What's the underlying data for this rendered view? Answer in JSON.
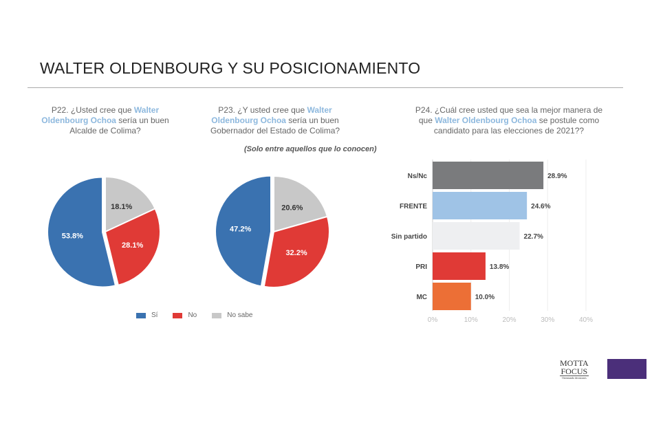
{
  "title": "WALTER OLDENBOURG Y SU POSICIONAMIENTO",
  "q22": {
    "pre": "P22. ¿Usted cree que ",
    "name1": "Walter",
    "name2": "Oldenbourg Ochoa",
    "post1": " sería un buen",
    "post2": "Alcalde de Colima?"
  },
  "q23": {
    "pre": "P23. ¿Y usted cree que ",
    "name1": "Walter",
    "name2": "Oldenbourg Ochoa",
    "post1": " sería un buen",
    "post2": "Gobernador del Estado de Colima?"
  },
  "q24": {
    "line1": "P24. ¿Cuál cree usted que sea la mejor manera de",
    "pre": "que ",
    "name": "Walter Oldenbourg Ochoa",
    "post": " se postule como",
    "line3": "candidato para las elecciones de 2021??"
  },
  "note": "(Solo entre aquellos que lo conocen)",
  "legend": [
    {
      "label": "Sí",
      "color": "#3a72b0"
    },
    {
      "label": "No",
      "color": "#e03a36"
    },
    {
      "label": "No sabe",
      "color": "#c8c8c8"
    }
  ],
  "logo": {
    "line1": "MOTTA",
    "line2": "FOCUS",
    "tagline": "Orientando decisiones"
  },
  "chart_data": [
    {
      "type": "pie",
      "title": "P22",
      "categories": [
        "No sabe",
        "No",
        "Sí"
      ],
      "values": [
        18.1,
        28.1,
        53.8
      ],
      "labels": [
        "18.1%",
        "28.1%",
        "53.8%"
      ],
      "colors": [
        "#c8c8c8",
        "#e03a36",
        "#3a72b0"
      ]
    },
    {
      "type": "pie",
      "title": "P23",
      "categories": [
        "No sabe",
        "No",
        "Sí"
      ],
      "values": [
        20.6,
        32.2,
        47.2
      ],
      "labels": [
        "20.6%",
        "32.2%",
        "47.2%"
      ],
      "colors": [
        "#c8c8c8",
        "#e03a36",
        "#3a72b0"
      ]
    },
    {
      "type": "bar",
      "orientation": "horizontal",
      "title": "P24",
      "categories": [
        "Ns/Nc",
        "FRENTE",
        "Sin partido",
        "PRI",
        "MC"
      ],
      "values": [
        28.9,
        24.6,
        22.7,
        13.8,
        10.0
      ],
      "labels": [
        "28.9%",
        "24.6%",
        "22.7%",
        "13.8%",
        "10.0%"
      ],
      "colors": [
        "#7a7b7d",
        "#9fc3e6",
        "#eeeff1",
        "#e03a36",
        "#ec6f36"
      ],
      "xlim": [
        0,
        40
      ],
      "xticks": [
        "0%",
        "10%",
        "20%",
        "30%",
        "40%"
      ]
    }
  ]
}
